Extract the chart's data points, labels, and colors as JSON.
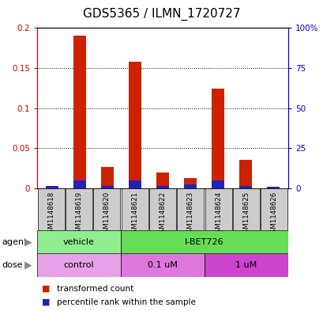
{
  "title": "GDS5365 / ILMN_1720727",
  "samples": [
    "GSM1148618",
    "GSM1148619",
    "GSM1148620",
    "GSM1148621",
    "GSM1148622",
    "GSM1148623",
    "GSM1148624",
    "GSM1148625",
    "GSM1148626"
  ],
  "red_values": [
    0.003,
    0.19,
    0.026,
    0.158,
    0.02,
    0.013,
    0.124,
    0.035,
    0.002
  ],
  "blue_pct": [
    1.5,
    5.0,
    1.5,
    5.0,
    1.5,
    2.5,
    5.0,
    1.5,
    1.0
  ],
  "ylim_left": [
    0,
    0.2
  ],
  "ylim_right": [
    0,
    100
  ],
  "yticks_left": [
    0,
    0.05,
    0.1,
    0.15,
    0.2
  ],
  "yticks_right": [
    0,
    25,
    50,
    75,
    100
  ],
  "ytick_labels_left": [
    "0",
    "0.05",
    "0.1",
    "0.15",
    "0.2"
  ],
  "ytick_labels_right": [
    "0",
    "25",
    "50",
    "75",
    "100%"
  ],
  "agent_groups": [
    {
      "label": "vehicle",
      "start": 0,
      "end": 3,
      "color": "#90EE90"
    },
    {
      "label": "I-BET726",
      "start": 3,
      "end": 9,
      "color": "#66DD55"
    }
  ],
  "dose_groups": [
    {
      "label": "control",
      "start": 0,
      "end": 3,
      "color": "#E8A0E8"
    },
    {
      "label": "0.1 uM",
      "start": 3,
      "end": 6,
      "color": "#DD77DD"
    },
    {
      "label": "1 uM",
      "start": 6,
      "end": 9,
      "color": "#CC44CC"
    }
  ],
  "bar_color_red": "#CC2200",
  "bar_color_blue": "#2222BB",
  "bar_width": 0.45,
  "bg_color": "#FFFFFF",
  "sample_bg": "#CCCCCC",
  "title_fontsize": 11,
  "tick_fontsize": 7.5,
  "axis_color_left": "#CC0000",
  "axis_color_right": "#0000CC"
}
